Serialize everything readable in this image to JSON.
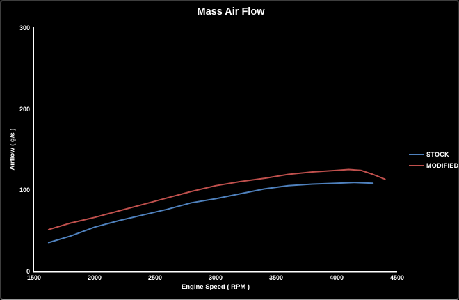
{
  "frame": {
    "background": "#000000",
    "border_dark": "#3e3e3e",
    "border_light": "#9b9b9b"
  },
  "chart_data": {
    "type": "line",
    "title": "Mass Air Flow",
    "xlabel": "Engine Speed ( RPM )",
    "ylabel": "Airflow ( g/s )",
    "xlim": [
      1500,
      4500
    ],
    "ylim": [
      0,
      300
    ],
    "x_ticks": [
      1500,
      2000,
      2500,
      3000,
      3500,
      4000,
      4500
    ],
    "y_ticks": [
      0,
      100,
      200,
      300
    ],
    "grid": false,
    "legend_position": "right",
    "axis_color": "#ffffff",
    "text_color": "#ffffff",
    "series": [
      {
        "name": "STOCK",
        "color": "#4F81BD",
        "points": [
          [
            1620,
            36
          ],
          [
            1800,
            44
          ],
          [
            2000,
            55
          ],
          [
            2200,
            63
          ],
          [
            2400,
            70
          ],
          [
            2600,
            77
          ],
          [
            2800,
            85
          ],
          [
            3000,
            90
          ],
          [
            3200,
            96
          ],
          [
            3400,
            102
          ],
          [
            3600,
            106
          ],
          [
            3800,
            108
          ],
          [
            4000,
            109
          ],
          [
            4150,
            110
          ],
          [
            4300,
            109
          ]
        ]
      },
      {
        "name": "MODIFIED",
        "color": "#C0504D",
        "points": [
          [
            1620,
            52
          ],
          [
            1800,
            60
          ],
          [
            2000,
            67
          ],
          [
            2200,
            75
          ],
          [
            2400,
            83
          ],
          [
            2600,
            91
          ],
          [
            2800,
            99
          ],
          [
            3000,
            106
          ],
          [
            3200,
            111
          ],
          [
            3400,
            115
          ],
          [
            3600,
            120
          ],
          [
            3800,
            123
          ],
          [
            4000,
            125
          ],
          [
            4100,
            126
          ],
          [
            4200,
            125
          ],
          [
            4300,
            120
          ],
          [
            4400,
            114
          ]
        ]
      }
    ]
  }
}
